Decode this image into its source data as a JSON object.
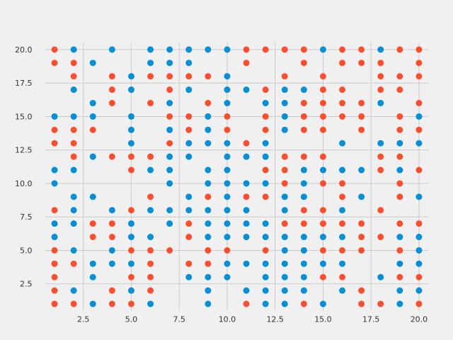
{
  "chart_data": {
    "type": "scatter",
    "title": "",
    "xlabel": "",
    "ylabel": "",
    "grid": true,
    "xlim": [
      0.5,
      20.5
    ],
    "ylim": [
      0.5,
      20.5
    ],
    "x_ticks": [
      2.5,
      5.0,
      7.5,
      10.0,
      12.5,
      15.0,
      17.5,
      20.0
    ],
    "x_tick_labels": [
      "2.5",
      "5.0",
      "7.5",
      "10.0",
      "12.5",
      "15.0",
      "17.5",
      "20.0"
    ],
    "y_ticks": [
      2.5,
      5.0,
      7.5,
      10.0,
      12.5,
      15.0,
      17.5,
      20.0
    ],
    "y_tick_labels": [
      "2.5",
      "5.0",
      "7.5",
      "10.0",
      "12.5",
      "15.0",
      "17.5",
      "20.0"
    ],
    "series": [
      {
        "color": "#008fd5",
        "points": [
          [
            1,
            6
          ],
          [
            1,
            7
          ],
          [
            1,
            10
          ],
          [
            1,
            11
          ],
          [
            1,
            15
          ],
          [
            2,
            2
          ],
          [
            2,
            5
          ],
          [
            2,
            7
          ],
          [
            2,
            8
          ],
          [
            2,
            9
          ],
          [
            2,
            11
          ],
          [
            2,
            15
          ],
          [
            2,
            17
          ],
          [
            2,
            20
          ],
          [
            3,
            1
          ],
          [
            3,
            3
          ],
          [
            3,
            4
          ],
          [
            3,
            9
          ],
          [
            3,
            12
          ],
          [
            3,
            15
          ],
          [
            3,
            16
          ],
          [
            3,
            19
          ],
          [
            4,
            4
          ],
          [
            4,
            5
          ],
          [
            4,
            8
          ],
          [
            4,
            20
          ],
          [
            5,
            2
          ],
          [
            5,
            4
          ],
          [
            5,
            6
          ],
          [
            5,
            7
          ],
          [
            5,
            13
          ],
          [
            5,
            14
          ],
          [
            5,
            15
          ],
          [
            5,
            17
          ],
          [
            5,
            18
          ],
          [
            6,
            1
          ],
          [
            6,
            6
          ],
          [
            6,
            8
          ],
          [
            6,
            11
          ],
          [
            6,
            19
          ],
          [
            6,
            20
          ],
          [
            7,
            7
          ],
          [
            7,
            8
          ],
          [
            7,
            10
          ],
          [
            7,
            11
          ],
          [
            7,
            12
          ],
          [
            7,
            14
          ],
          [
            7,
            16
          ],
          [
            7,
            19
          ],
          [
            7,
            20
          ],
          [
            8,
            3
          ],
          [
            8,
            8
          ],
          [
            8,
            9
          ],
          [
            8,
            12
          ],
          [
            8,
            13
          ],
          [
            8,
            17
          ],
          [
            8,
            19
          ],
          [
            8,
            20
          ],
          [
            9,
            1
          ],
          [
            9,
            2
          ],
          [
            9,
            3
          ],
          [
            9,
            6
          ],
          [
            9,
            7
          ],
          [
            9,
            8
          ],
          [
            9,
            10
          ],
          [
            9,
            11
          ],
          [
            9,
            13
          ],
          [
            9,
            14
          ],
          [
            9,
            15
          ],
          [
            9,
            20
          ],
          [
            10,
            3
          ],
          [
            10,
            4
          ],
          [
            10,
            6
          ],
          [
            10,
            7
          ],
          [
            10,
            8
          ],
          [
            10,
            9
          ],
          [
            10,
            10
          ],
          [
            10,
            11
          ],
          [
            10,
            12
          ],
          [
            10,
            13
          ],
          [
            10,
            16
          ],
          [
            10,
            17
          ],
          [
            10,
            18
          ],
          [
            10,
            20
          ],
          [
            11,
            2
          ],
          [
            11,
            4
          ],
          [
            11,
            6
          ],
          [
            11,
            7
          ],
          [
            11,
            8
          ],
          [
            11,
            10
          ],
          [
            11,
            12
          ],
          [
            11,
            17
          ],
          [
            12,
            1
          ],
          [
            12,
            2
          ],
          [
            12,
            3
          ],
          [
            12,
            4
          ],
          [
            12,
            6
          ],
          [
            12,
            7
          ],
          [
            12,
            10
          ],
          [
            12,
            12
          ],
          [
            12,
            13
          ],
          [
            12,
            16
          ],
          [
            13,
            1
          ],
          [
            13,
            2
          ],
          [
            13,
            3
          ],
          [
            13,
            4
          ],
          [
            13,
            5
          ],
          [
            13,
            6
          ],
          [
            13,
            8
          ],
          [
            13,
            9
          ],
          [
            13,
            14
          ],
          [
            13,
            15
          ],
          [
            13,
            16
          ],
          [
            13,
            17
          ],
          [
            14,
            2
          ],
          [
            14,
            3
          ],
          [
            14,
            4
          ],
          [
            14,
            5
          ],
          [
            14,
            6
          ],
          [
            14,
            9
          ],
          [
            14,
            10
          ],
          [
            14,
            11
          ],
          [
            14,
            17
          ],
          [
            15,
            1
          ],
          [
            15,
            4
          ],
          [
            15,
            6
          ],
          [
            15,
            11
          ],
          [
            15,
            20
          ],
          [
            16,
            2
          ],
          [
            16,
            4
          ],
          [
            16,
            6
          ],
          [
            16,
            8
          ],
          [
            16,
            11
          ],
          [
            16,
            13
          ],
          [
            17,
            9
          ],
          [
            17,
            11
          ],
          [
            18,
            3
          ],
          [
            18,
            13
          ],
          [
            18,
            16
          ],
          [
            18,
            20
          ],
          [
            19,
            1
          ],
          [
            19,
            2
          ],
          [
            19,
            4
          ],
          [
            19,
            6
          ],
          [
            19,
            11
          ],
          [
            19,
            13
          ],
          [
            20,
            2
          ],
          [
            20,
            4
          ],
          [
            20,
            5
          ],
          [
            20,
            6
          ],
          [
            20,
            9
          ],
          [
            20,
            13
          ],
          [
            20,
            15
          ]
        ]
      },
      {
        "color": "#fc4f30",
        "points": [
          [
            1,
            1
          ],
          [
            1,
            2
          ],
          [
            1,
            3
          ],
          [
            1,
            4
          ],
          [
            1,
            5
          ],
          [
            1,
            8
          ],
          [
            1,
            13
          ],
          [
            1,
            14
          ],
          [
            1,
            19
          ],
          [
            1,
            20
          ],
          [
            2,
            1
          ],
          [
            2,
            4
          ],
          [
            2,
            12
          ],
          [
            2,
            13
          ],
          [
            2,
            14
          ],
          [
            2,
            18
          ],
          [
            2,
            19
          ],
          [
            3,
            6
          ],
          [
            3,
            7
          ],
          [
            3,
            14
          ],
          [
            4,
            1
          ],
          [
            4,
            2
          ],
          [
            4,
            6
          ],
          [
            4,
            7
          ],
          [
            4,
            12
          ],
          [
            4,
            16
          ],
          [
            4,
            17
          ],
          [
            4,
            18
          ],
          [
            5,
            1
          ],
          [
            5,
            3
          ],
          [
            5,
            5
          ],
          [
            5,
            8
          ],
          [
            5,
            11
          ],
          [
            5,
            12
          ],
          [
            6,
            2
          ],
          [
            6,
            3
          ],
          [
            6,
            4
          ],
          [
            6,
            5
          ],
          [
            6,
            9
          ],
          [
            6,
            12
          ],
          [
            6,
            16
          ],
          [
            6,
            18
          ],
          [
            7,
            5
          ],
          [
            7,
            13
          ],
          [
            7,
            15
          ],
          [
            7,
            17
          ],
          [
            7,
            18
          ],
          [
            8,
            4
          ],
          [
            8,
            6
          ],
          [
            8,
            7
          ],
          [
            8,
            14
          ],
          [
            8,
            15
          ],
          [
            8,
            18
          ],
          [
            9,
            4
          ],
          [
            9,
            5
          ],
          [
            9,
            9
          ],
          [
            9,
            16
          ],
          [
            9,
            18
          ],
          [
            10,
            5
          ],
          [
            10,
            14
          ],
          [
            10,
            15
          ],
          [
            11,
            1
          ],
          [
            11,
            9
          ],
          [
            11,
            13
          ],
          [
            11,
            19
          ],
          [
            11,
            20
          ],
          [
            12,
            5
          ],
          [
            12,
            9
          ],
          [
            12,
            11
          ],
          [
            12,
            14
          ],
          [
            12,
            15
          ],
          [
            12,
            17
          ],
          [
            12,
            20
          ],
          [
            13,
            7
          ],
          [
            13,
            10
          ],
          [
            13,
            11
          ],
          [
            13,
            12
          ],
          [
            13,
            18
          ],
          [
            13,
            20
          ],
          [
            14,
            1
          ],
          [
            14,
            7
          ],
          [
            14,
            8
          ],
          [
            14,
            12
          ],
          [
            14,
            14
          ],
          [
            14,
            15
          ],
          [
            14,
            16
          ],
          [
            14,
            19
          ],
          [
            14,
            20
          ],
          [
            15,
            3
          ],
          [
            15,
            5
          ],
          [
            15,
            7
          ],
          [
            15,
            8
          ],
          [
            15,
            10
          ],
          [
            15,
            12
          ],
          [
            15,
            14
          ],
          [
            15,
            15
          ],
          [
            15,
            16
          ],
          [
            15,
            17
          ],
          [
            15,
            18
          ],
          [
            16,
            3
          ],
          [
            16,
            5
          ],
          [
            16,
            7
          ],
          [
            16,
            9
          ],
          [
            16,
            10
          ],
          [
            16,
            15
          ],
          [
            16,
            16
          ],
          [
            16,
            17
          ],
          [
            16,
            19
          ],
          [
            16,
            20
          ],
          [
            17,
            1
          ],
          [
            17,
            2
          ],
          [
            17,
            5
          ],
          [
            17,
            6
          ],
          [
            17,
            7
          ],
          [
            17,
            14
          ],
          [
            17,
            15
          ],
          [
            17,
            16
          ],
          [
            17,
            19
          ],
          [
            17,
            20
          ],
          [
            18,
            1
          ],
          [
            18,
            6
          ],
          [
            18,
            8
          ],
          [
            18,
            11
          ],
          [
            18,
            12
          ],
          [
            18,
            17
          ],
          [
            18,
            18
          ],
          [
            18,
            19
          ],
          [
            19,
            3
          ],
          [
            19,
            5
          ],
          [
            19,
            7
          ],
          [
            19,
            9
          ],
          [
            19,
            10
          ],
          [
            19,
            12
          ],
          [
            19,
            14
          ],
          [
            19,
            15
          ],
          [
            19,
            17
          ],
          [
            19,
            18
          ],
          [
            19,
            20
          ],
          [
            20,
            1
          ],
          [
            20,
            3
          ],
          [
            20,
            7
          ],
          [
            20,
            11
          ],
          [
            20,
            14
          ],
          [
            20,
            16
          ],
          [
            20,
            18
          ],
          [
            20,
            19
          ],
          [
            20,
            20
          ]
        ]
      }
    ]
  }
}
